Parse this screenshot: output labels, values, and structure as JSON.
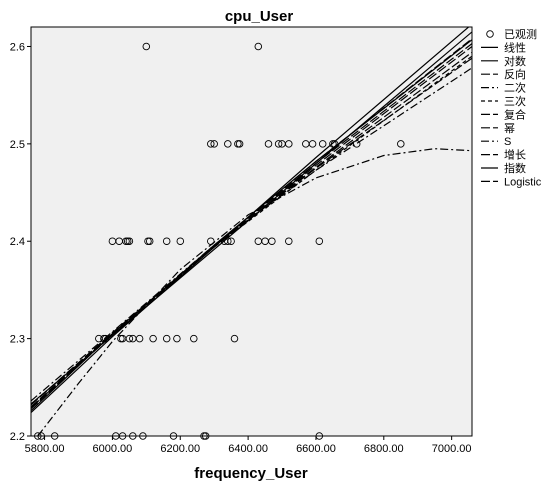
{
  "chart_data": {
    "type": "scatter",
    "title": "cpu_User",
    "xlabel": "frequency_User",
    "ylabel": "",
    "xlim": [
      5760,
      7060
    ],
    "ylim": [
      2.2,
      2.62
    ],
    "x_ticks": [
      5800,
      6000,
      6200,
      6400,
      6600,
      6800,
      7000
    ],
    "x_tick_labels": [
      "5800.00",
      "6000.00",
      "6200.00",
      "6400.00",
      "6600.00",
      "6800.00",
      "7000.00"
    ],
    "y_ticks": [
      2.2,
      2.3,
      2.4,
      2.5,
      2.6
    ],
    "y_tick_labels": [
      "2.2",
      "2.3",
      "2.4",
      "2.5",
      "2.6"
    ],
    "grid": false,
    "legend_position": "right",
    "background": "#f0f0f0",
    "observed": {
      "name": "已观测",
      "points": [
        [
          6100,
          2.6
        ],
        [
          6430,
          2.6
        ],
        [
          6290,
          2.5
        ],
        [
          6300,
          2.5
        ],
        [
          6340,
          2.5
        ],
        [
          6370,
          2.5
        ],
        [
          6375,
          2.5
        ],
        [
          6460,
          2.5
        ],
        [
          6490,
          2.5
        ],
        [
          6500,
          2.5
        ],
        [
          6520,
          2.5
        ],
        [
          6570,
          2.5
        ],
        [
          6590,
          2.5
        ],
        [
          6620,
          2.5
        ],
        [
          6650,
          2.5
        ],
        [
          6655,
          2.5
        ],
        [
          6720,
          2.5
        ],
        [
          6850,
          2.5
        ],
        [
          6000,
          2.4
        ],
        [
          6020,
          2.4
        ],
        [
          6040,
          2.4
        ],
        [
          6045,
          2.4
        ],
        [
          6050,
          2.4
        ],
        [
          6105,
          2.4
        ],
        [
          6110,
          2.4
        ],
        [
          6160,
          2.4
        ],
        [
          6200,
          2.4
        ],
        [
          6290,
          2.4
        ],
        [
          6330,
          2.4
        ],
        [
          6340,
          2.4
        ],
        [
          6350,
          2.4
        ],
        [
          6430,
          2.4
        ],
        [
          6450,
          2.4
        ],
        [
          6470,
          2.4
        ],
        [
          6520,
          2.4
        ],
        [
          6610,
          2.4
        ],
        [
          5960,
          2.3
        ],
        [
          5975,
          2.3
        ],
        [
          5980,
          2.3
        ],
        [
          6025,
          2.3
        ],
        [
          6030,
          2.3
        ],
        [
          6050,
          2.3
        ],
        [
          6060,
          2.3
        ],
        [
          6080,
          2.3
        ],
        [
          6120,
          2.3
        ],
        [
          6160,
          2.3
        ],
        [
          6190,
          2.3
        ],
        [
          6240,
          2.3
        ],
        [
          6360,
          2.3
        ],
        [
          5780,
          2.2
        ],
        [
          5790,
          2.2
        ],
        [
          5830,
          2.2
        ],
        [
          6010,
          2.2
        ],
        [
          6030,
          2.2
        ],
        [
          6060,
          2.2
        ],
        [
          6090,
          2.2
        ],
        [
          6180,
          2.2
        ],
        [
          6270,
          2.2
        ],
        [
          6275,
          2.2
        ],
        [
          6610,
          2.2
        ]
      ]
    },
    "series": [
      {
        "name": "线性",
        "dash": "solid",
        "values": [
          [
            5760,
            2.233
          ],
          [
            7060,
            2.615
          ]
        ]
      },
      {
        "name": "对数",
        "dash": "solid",
        "values": [
          [
            5760,
            2.226
          ],
          [
            6000,
            2.305
          ],
          [
            6300,
            2.396
          ],
          [
            6600,
            2.482
          ],
          [
            7060,
            2.607
          ]
        ]
      },
      {
        "name": "反向",
        "dash": "long-dash",
        "values": [
          [
            5760,
            2.232
          ],
          [
            6000,
            2.306
          ],
          [
            6300,
            2.395
          ],
          [
            6600,
            2.475
          ],
          [
            7060,
            2.588
          ]
        ]
      },
      {
        "name": "二次",
        "dash": "dash-dot",
        "values": [
          [
            5780,
            2.2
          ],
          [
            5900,
            2.254
          ],
          [
            6000,
            2.297
          ],
          [
            6200,
            2.371
          ],
          [
            6400,
            2.427
          ],
          [
            6600,
            2.465
          ],
          [
            6800,
            2.488
          ],
          [
            6950,
            2.495
          ],
          [
            7060,
            2.493
          ]
        ]
      },
      {
        "name": "三次",
        "dash": "dashed",
        "values": [
          [
            5760,
            2.229
          ],
          [
            6000,
            2.305
          ],
          [
            6300,
            2.394
          ],
          [
            6600,
            2.473
          ],
          [
            7060,
            2.59
          ]
        ]
      },
      {
        "name": "复合",
        "dash": "long-dash",
        "values": [
          [
            5760,
            2.23
          ],
          [
            6000,
            2.305
          ],
          [
            6300,
            2.394
          ],
          [
            6600,
            2.478
          ],
          [
            7060,
            2.6
          ]
        ]
      },
      {
        "name": "幂",
        "dash": "long-dash",
        "values": [
          [
            5760,
            2.232
          ],
          [
            6000,
            2.306
          ],
          [
            6300,
            2.395
          ],
          [
            6600,
            2.476
          ],
          [
            7060,
            2.594
          ]
        ]
      },
      {
        "name": "S",
        "dash": "dash-dot",
        "values": [
          [
            5760,
            2.236
          ],
          [
            6000,
            2.307
          ],
          [
            6300,
            2.396
          ],
          [
            6600,
            2.473
          ],
          [
            7060,
            2.578
          ]
        ]
      },
      {
        "name": "增长",
        "dash": "long-dash",
        "values": [
          [
            5760,
            2.229
          ],
          [
            6000,
            2.304
          ],
          [
            6300,
            2.395
          ],
          [
            6600,
            2.48
          ],
          [
            7060,
            2.603
          ]
        ]
      },
      {
        "name": "指数",
        "dash": "solid",
        "values": [
          [
            5760,
            2.224
          ],
          [
            6000,
            2.302
          ],
          [
            6300,
            2.394
          ],
          [
            6600,
            2.486
          ],
          [
            7060,
            2.623
          ]
        ]
      },
      {
        "name": "Logistic",
        "dash": "long-dash",
        "values": [
          [
            5760,
            2.228
          ],
          [
            6000,
            2.304
          ],
          [
            6300,
            2.395
          ],
          [
            6600,
            2.482
          ],
          [
            7060,
            2.608
          ]
        ]
      }
    ]
  }
}
